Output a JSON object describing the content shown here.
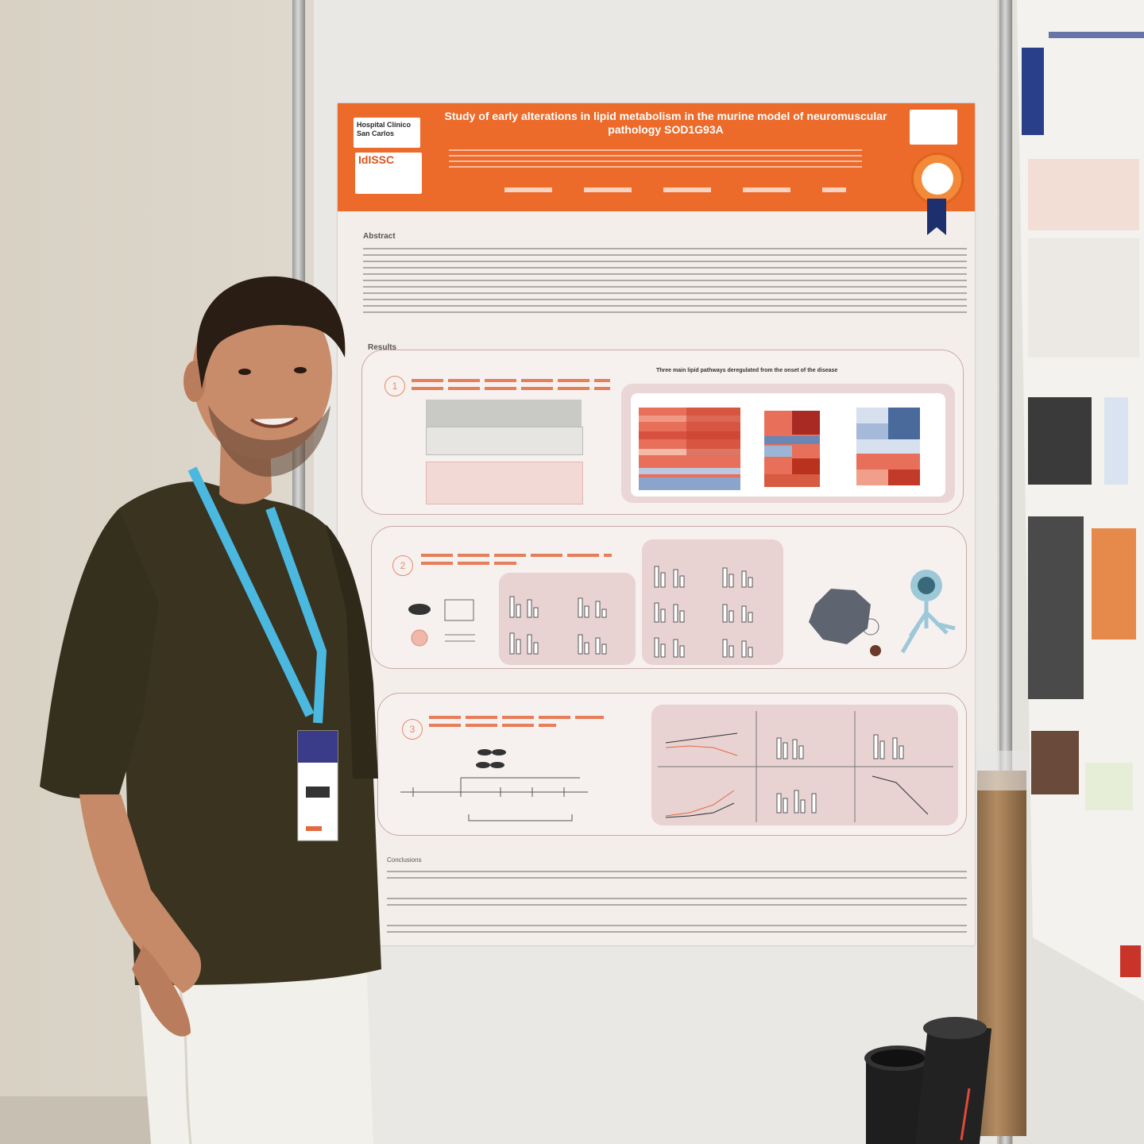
{
  "poster": {
    "title": "Study of early alterations in lipid metabolism in the murine model of neuromuscular pathology SOD1G93A",
    "logo_hospital": "Hospital Clínico San Carlos",
    "logo_institute": "IdISSC",
    "sections": {
      "abstract": "Abstract",
      "results": "Results",
      "conclusions": "Conclusions"
    },
    "result_numbers": [
      "1",
      "2",
      "3"
    ],
    "result1_heading": "Three main lipid pathways deregulated from the onset of the disease"
  },
  "colors": {
    "poster_header": "#ec6a2a",
    "lanyard": "#4bb8e0",
    "shirt": "#3a3320",
    "pants": "#f2f0ea"
  }
}
